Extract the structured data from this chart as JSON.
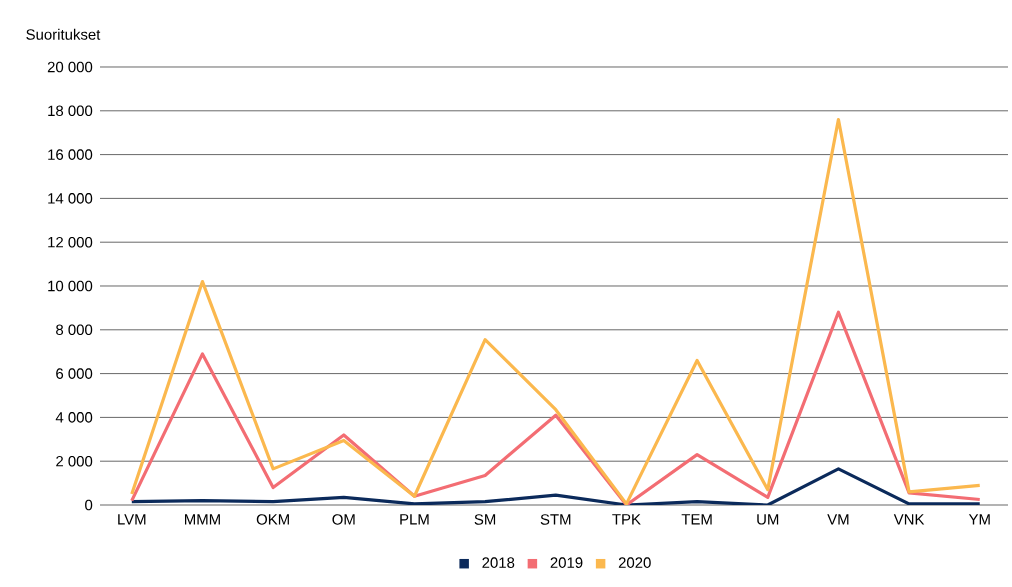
{
  "chart_data": {
    "type": "line",
    "ylabel": "Suoritukset",
    "categories": [
      "LVM",
      "MMM",
      "OKM",
      "OM",
      "PLM",
      "SM",
      "STM",
      "TPK",
      "TEM",
      "UM",
      "VM",
      "VNK",
      "YM"
    ],
    "series": [
      {
        "name": "2018",
        "color": "#0b2a5b",
        "values": [
          150,
          200,
          150,
          350,
          50,
          150,
          450,
          0,
          150,
          0,
          1650,
          50,
          50
        ]
      },
      {
        "name": "2019",
        "color": "#f36d73",
        "values": [
          200,
          6900,
          800,
          3200,
          400,
          1350,
          4100,
          0,
          2300,
          350,
          8800,
          550,
          250
        ]
      },
      {
        "name": "2020",
        "color": "#fbb84e",
        "values": [
          500,
          10200,
          1650,
          2950,
          400,
          7550,
          4350,
          50,
          6600,
          700,
          17600,
          600,
          900
        ]
      }
    ],
    "ylim": [
      0,
      20000
    ],
    "yticks": [
      {
        "value": 0,
        "label": "0"
      },
      {
        "value": 2000,
        "label": "2 000"
      },
      {
        "value": 4000,
        "label": "4 000"
      },
      {
        "value": 6000,
        "label": "6 000"
      },
      {
        "value": 8000,
        "label": "8 000"
      },
      {
        "value": 10000,
        "label": "10 000"
      },
      {
        "value": 12000,
        "label": "12 000"
      },
      {
        "value": 14000,
        "label": "14 000"
      },
      {
        "value": 16000,
        "label": "16 000"
      },
      {
        "value": 18000,
        "label": "18 000"
      },
      {
        "value": 20000,
        "label": "20 000"
      }
    ],
    "grid": "y",
    "legend": "bottom",
    "marker": "none",
    "line_style": "solid"
  }
}
